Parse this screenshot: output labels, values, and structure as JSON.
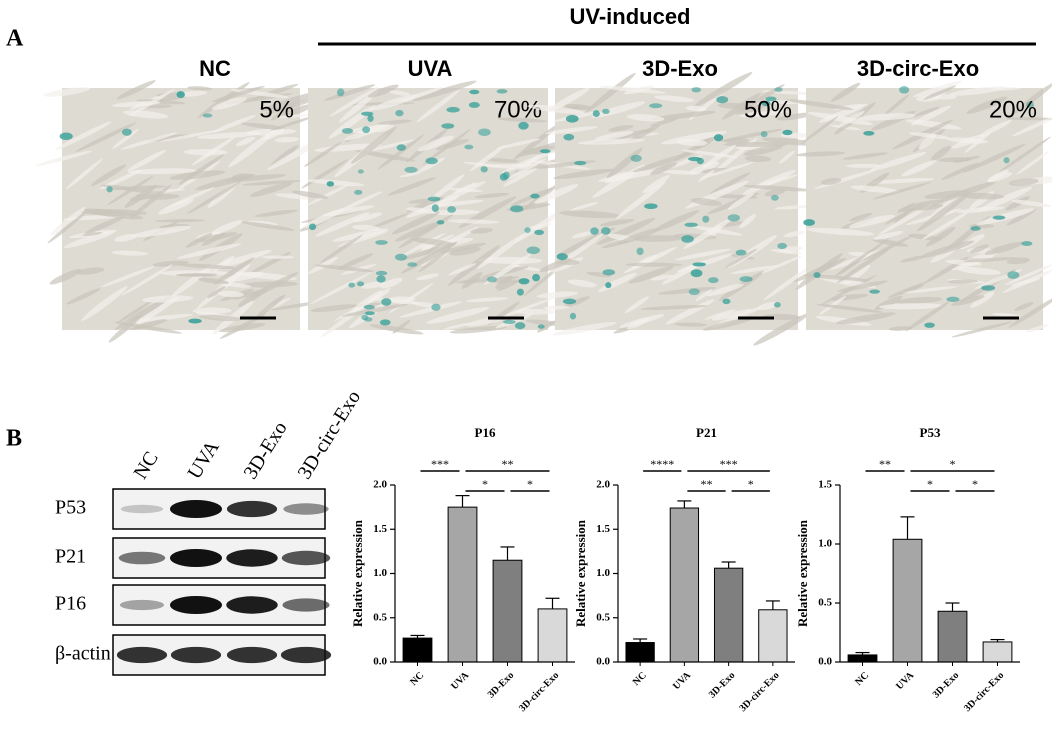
{
  "panel_a": {
    "label": "A",
    "group_title": "UV-induced",
    "groups": [
      {
        "name": "NC",
        "percent": "5%"
      },
      {
        "name": "UVA",
        "percent": "70%"
      },
      {
        "name": "3D-Exo",
        "percent": "50%"
      },
      {
        "name": "3D-circ-Exo",
        "percent": "20%"
      }
    ]
  },
  "panel_b": {
    "label": "B",
    "lanes": [
      "NC",
      "UVA",
      "3D-Exo",
      "3D-circ-Exo"
    ],
    "rows": [
      "P53",
      "P21",
      "P16",
      "β-actin"
    ]
  },
  "chart_data": [
    {
      "type": "bar",
      "title": "P16",
      "ylabel": "Relative expression",
      "categories": [
        "NC",
        "UVA",
        "3D-Exo",
        "3D-circ-Exo"
      ],
      "values": [
        0.27,
        1.75,
        1.15,
        0.6
      ],
      "errors": [
        0.03,
        0.13,
        0.15,
        0.12
      ],
      "colors": [
        "#000000",
        "#a6a6a6",
        "#7f7f7f",
        "#d9d9d9"
      ],
      "ylim": [
        0,
        2
      ],
      "yticks": [
        {
          "value": 0,
          "label": "0.0"
        },
        0.5,
        {
          "value": 1,
          "label": "1.0"
        },
        1.5,
        {
          "value": 2,
          "label": "2.0"
        }
      ],
      "annotations": [
        "***",
        "**",
        "*",
        "*"
      ]
    },
    {
      "type": "bar",
      "title": "P21",
      "ylabel": "Relative expression",
      "categories": [
        "NC",
        "UVA",
        "3D-Exo",
        "3D-circ-Exo"
      ],
      "values": [
        0.22,
        1.74,
        1.06,
        0.59
      ],
      "errors": [
        0.04,
        0.08,
        0.07,
        0.1
      ],
      "colors": [
        "#000000",
        "#a6a6a6",
        "#7f7f7f",
        "#d9d9d9"
      ],
      "ylim": [
        0,
        2
      ],
      "yticks": [
        {
          "value": 0,
          "label": "0.0"
        },
        0.5,
        {
          "value": 1,
          "label": "1.0"
        },
        1.5,
        {
          "value": 2,
          "label": "2.0"
        }
      ],
      "annotations": [
        "****",
        "***",
        "**",
        "*"
      ]
    },
    {
      "type": "bar",
      "title": "P53",
      "ylabel": "Relative expression",
      "categories": [
        "NC",
        "UVA",
        "3D-Exo",
        "3D-circ-Exo"
      ],
      "values": [
        0.06,
        1.04,
        0.43,
        0.17
      ],
      "errors": [
        0.02,
        0.19,
        0.07,
        0.02
      ],
      "colors": [
        "#000000",
        "#a6a6a6",
        "#7f7f7f",
        "#d9d9d9"
      ],
      "ylim": [
        0,
        1.5
      ],
      "yticks": [
        {
          "value": 0,
          "label": "0.0"
        },
        0.5,
        {
          "value": 1,
          "label": "1.0"
        },
        1.5
      ],
      "annotations": [
        "**",
        "*",
        "*",
        "*"
      ]
    }
  ]
}
